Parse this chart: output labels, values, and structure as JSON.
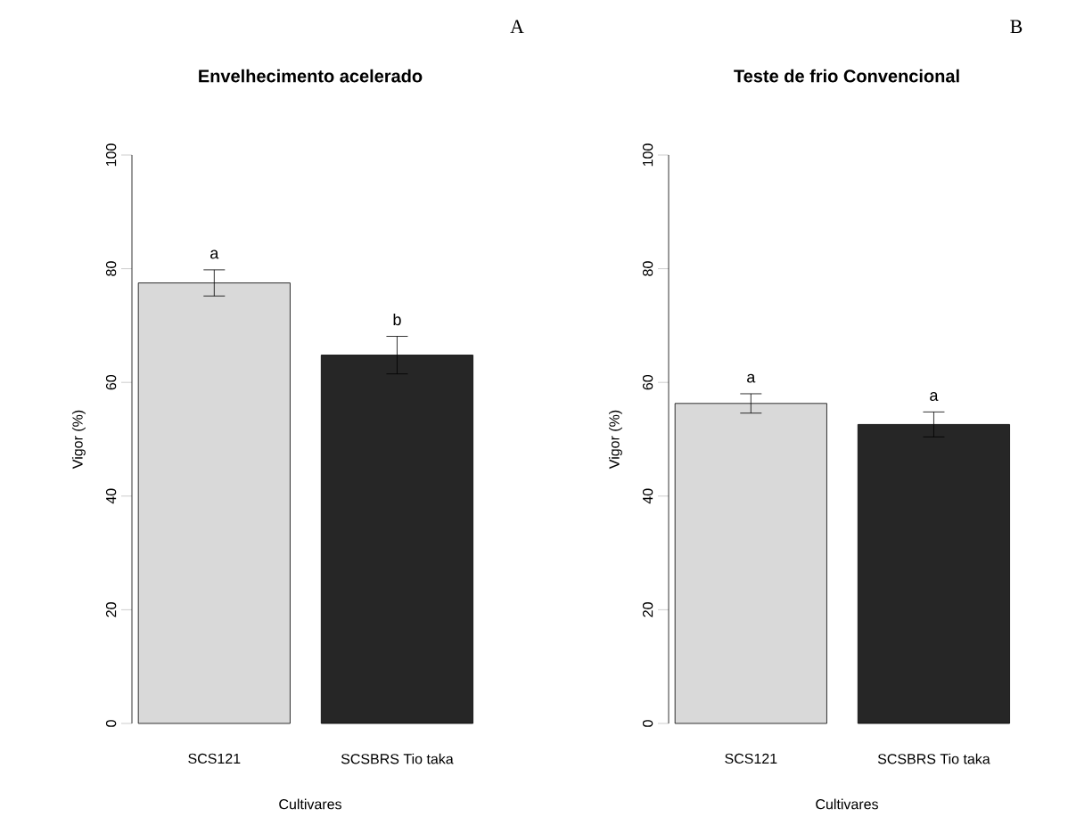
{
  "chart_data": [
    {
      "type": "bar",
      "title": "Envelhecimento acelerado",
      "xlabel": "Cultivares",
      "ylabel": "Vigor (%)",
      "categories": [
        "SCS121",
        "SCSBRS Tio taka"
      ],
      "values": [
        77.5,
        64.8
      ],
      "errors": [
        2.3,
        3.3
      ],
      "colors": [
        "#d9d9d9",
        "#262626"
      ],
      "ylim": [
        0,
        100
      ],
      "yticks": [
        0,
        20,
        40,
        60,
        80,
        100
      ],
      "annotations": [
        "A",
        "a",
        "b"
      ]
    },
    {
      "type": "bar",
      "title": "Teste de frio Convencional",
      "xlabel": "Cultivares",
      "ylabel": "Vigor (%)",
      "categories": [
        "SCS121",
        "SCSBRS Tio taka"
      ],
      "values": [
        56.3,
        52.6
      ],
      "errors": [
        1.7,
        2.2
      ],
      "colors": [
        "#d9d9d9",
        "#262626"
      ],
      "ylim": [
        0,
        100
      ],
      "yticks": [
        0,
        20,
        40,
        60,
        80,
        100
      ],
      "annotations": [
        "B",
        "a",
        "a"
      ]
    }
  ]
}
